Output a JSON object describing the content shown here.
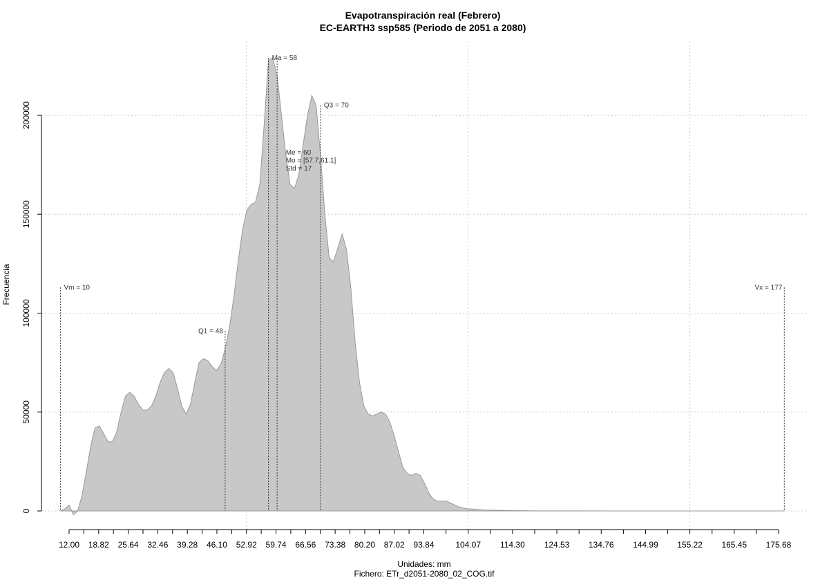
{
  "chart_data": {
    "type": "area",
    "title": "Evapotranspiración real (Febrero)",
    "subtitle": "EC-EARTH3 ssp585 (Periodo de 2051 a 2080)",
    "xlabel": "Unidades: mm",
    "ylabel": "Frecuencia",
    "footer": "Fichero: ETr_d2051-2080_02_COG.tif",
    "xlim": [
      10,
      178.5
    ],
    "ylim": [
      -5000,
      232000
    ],
    "x_ticks": [
      12.0,
      18.82,
      25.64,
      32.46,
      39.28,
      46.1,
      52.92,
      59.74,
      66.56,
      73.38,
      80.2,
      87.02,
      93.84,
      104.07,
      114.3,
      124.53,
      134.76,
      144.99,
      155.22,
      165.45,
      175.68
    ],
    "x_tick_labels": [
      "12.00",
      "18.82",
      "25.64",
      "32.46",
      "39.28",
      "46.10",
      "52.92",
      "59.74",
      "66.56",
      "73.38",
      "80.20",
      "87.02",
      "93.84",
      "104.07",
      "114.30",
      "124.53",
      "134.76",
      "144.99",
      "155.22",
      "165.45",
      "175.68"
    ],
    "x_minor_ticks": [
      15.41,
      22.23,
      29.05,
      35.87,
      42.69,
      49.51,
      56.33,
      63.15,
      69.97,
      76.79,
      83.61,
      90.43,
      98.96,
      109.19,
      119.42,
      129.65,
      139.88,
      150.11,
      160.34,
      170.57
    ],
    "y_ticks": [
      0,
      50000,
      100000,
      150000,
      200000
    ],
    "y_tick_labels": [
      "0",
      "50000",
      "100000",
      "150000",
      "200000"
    ],
    "grid_x": [
      52.92,
      104.07,
      155.22
    ],
    "grid": true,
    "fill_color": "#c8c8c8",
    "line_color": "#999999",
    "x": [
      10,
      11,
      12,
      13,
      14,
      15,
      16,
      17,
      18,
      19,
      20,
      21,
      22,
      23,
      24,
      25,
      26,
      27,
      28,
      29,
      30,
      31,
      32,
      33,
      34,
      35,
      36,
      37,
      38,
      39,
      40,
      41,
      42,
      43,
      44,
      45,
      46,
      47,
      48,
      49,
      50,
      51,
      52,
      53,
      54,
      55,
      56,
      57,
      58,
      59,
      60,
      61,
      62,
      63,
      64,
      65,
      66,
      67,
      68,
      69,
      70,
      71,
      72,
      73,
      74,
      75,
      76,
      77,
      78,
      79,
      80,
      81,
      82,
      83,
      84,
      85,
      86,
      87,
      88,
      89,
      90,
      91,
      92,
      93,
      94,
      95,
      96,
      97,
      98,
      99,
      100,
      101,
      102,
      103,
      104,
      105,
      106,
      107,
      108,
      110,
      112,
      114,
      116,
      118,
      120,
      125,
      130,
      140,
      150,
      160,
      170,
      177
    ],
    "y": [
      0,
      1000,
      3000,
      -2000,
      0,
      8000,
      20000,
      33000,
      42000,
      43000,
      39000,
      35000,
      35000,
      40000,
      50000,
      58000,
      60000,
      58000,
      54000,
      51000,
      51000,
      53000,
      58000,
      65000,
      70000,
      72000,
      70000,
      62000,
      53000,
      49000,
      54000,
      65000,
      75000,
      77000,
      76000,
      73000,
      71000,
      74000,
      82000,
      93000,
      108000,
      126000,
      142000,
      152000,
      155000,
      156000,
      165000,
      195000,
      228000,
      229000,
      220000,
      200000,
      180000,
      165000,
      163000,
      170000,
      185000,
      200000,
      210000,
      205000,
      180000,
      150000,
      128000,
      126000,
      133000,
      140000,
      132000,
      113000,
      85000,
      65000,
      53000,
      49000,
      48000,
      49000,
      50000,
      49000,
      45000,
      38000,
      30000,
      22000,
      19000,
      18000,
      19000,
      18000,
      14000,
      9000,
      6000,
      5000,
      5000,
      5000,
      4000,
      3000,
      2000,
      1500,
      1000,
      1000,
      800,
      600,
      500,
      400,
      300,
      200,
      150,
      100,
      50,
      30,
      20,
      10,
      5,
      2,
      1,
      0
    ],
    "markers": [
      {
        "x": 10,
        "y_top": 113000,
        "label": "Vm = 10",
        "label_side": "right"
      },
      {
        "x": 48,
        "y_top": 91000,
        "label": "Q1 = 48",
        "label_side": "left"
      },
      {
        "x": 58,
        "y_top": 229000,
        "label": "Ma = 58",
        "label_side": "right"
      },
      {
        "x": 60,
        "y_top": 0,
        "label": "",
        "label_side": "right"
      },
      {
        "x": 70,
        "y_top": 205000,
        "label": "Q3 = 70",
        "label_side": "right"
      },
      {
        "x": 177,
        "y_top": 113000,
        "label": "Vx = 177",
        "label_side": "left"
      }
    ],
    "stats": [
      "Me = 60",
      "Mo = [57.7,61.1]",
      "Std = 17"
    ],
    "stats_anchor": {
      "x": 62,
      "y": 187000
    }
  }
}
